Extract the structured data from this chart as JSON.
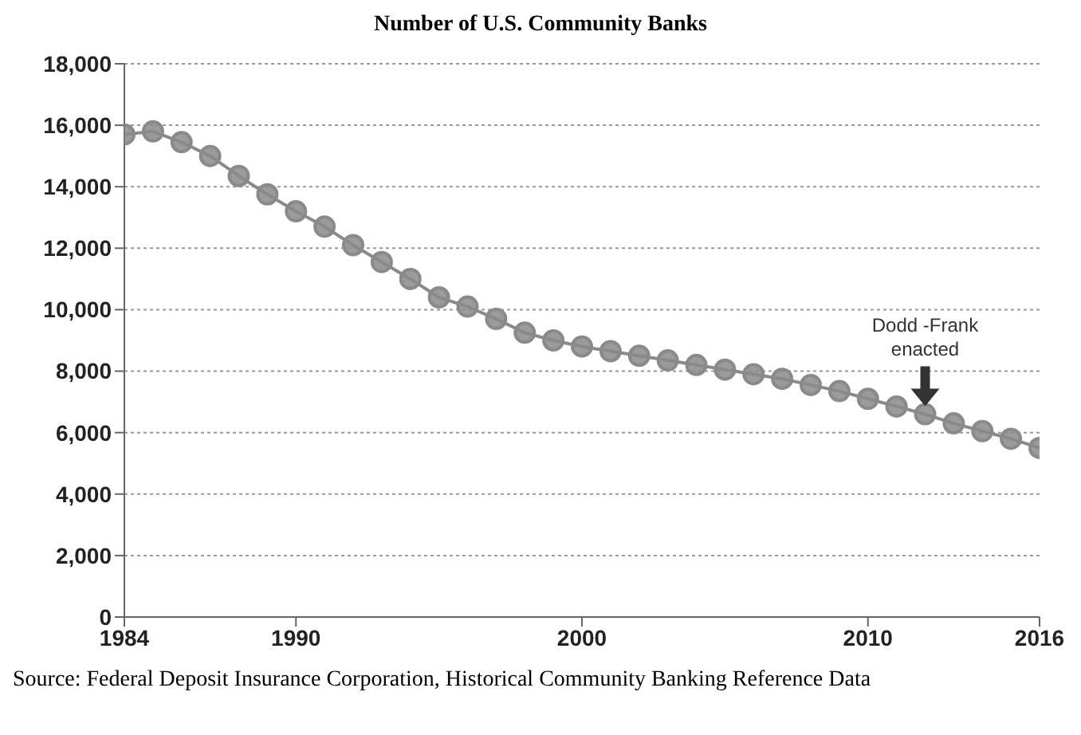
{
  "chart_data": {
    "type": "line",
    "title": "Number of U.S. Community Banks",
    "x": [
      1984,
      1985,
      1986,
      1987,
      1988,
      1989,
      1990,
      1991,
      1992,
      1993,
      1994,
      1995,
      1996,
      1997,
      1998,
      1999,
      2000,
      2001,
      2002,
      2003,
      2004,
      2005,
      2006,
      2007,
      2008,
      2009,
      2010,
      2011,
      2012,
      2013,
      2014,
      2015,
      2016
    ],
    "series": [
      {
        "color": "#8a8a8a",
        "values": [
          15700,
          15800,
          15450,
          15000,
          14350,
          13750,
          13200,
          12700,
          12100,
          11550,
          11000,
          10400,
          10100,
          9700,
          9250,
          9000,
          8800,
          8650,
          8500,
          8350,
          8200,
          8050,
          7900,
          7750,
          7550,
          7350,
          7100,
          6850,
          6600,
          6300,
          6050,
          5800,
          5500
        ]
      }
    ],
    "xlim": [
      1984,
      2016
    ],
    "xticks": [
      1984,
      1990,
      2000,
      2010,
      2016
    ],
    "ylim": [
      0,
      18000
    ],
    "yticks": [
      0,
      {
        "value": 2000,
        "label": "2,000"
      },
      {
        "value": 4000,
        "label": "4,000"
      },
      {
        "value": 6000,
        "label": "6,000"
      },
      {
        "value": 8000,
        "label": "8,000"
      },
      {
        "value": 10000,
        "label": "10,000"
      },
      {
        "value": 12000,
        "label": "12,000"
      },
      {
        "value": 14000,
        "label": "14,000"
      },
      {
        "value": 16000,
        "label": "16,000"
      },
      {
        "value": 18000,
        "label": "18,000"
      }
    ],
    "grid": "y",
    "legend": false,
    "marker": "circle",
    "line_style": "solid",
    "annotations": [
      {
        "text": "Dodd -Frank enacted",
        "x": 2012,
        "y": 6600
      },
      "Source: Federal Deposit Insurance Corporation, Historical Community Banking Reference Data"
    ]
  }
}
